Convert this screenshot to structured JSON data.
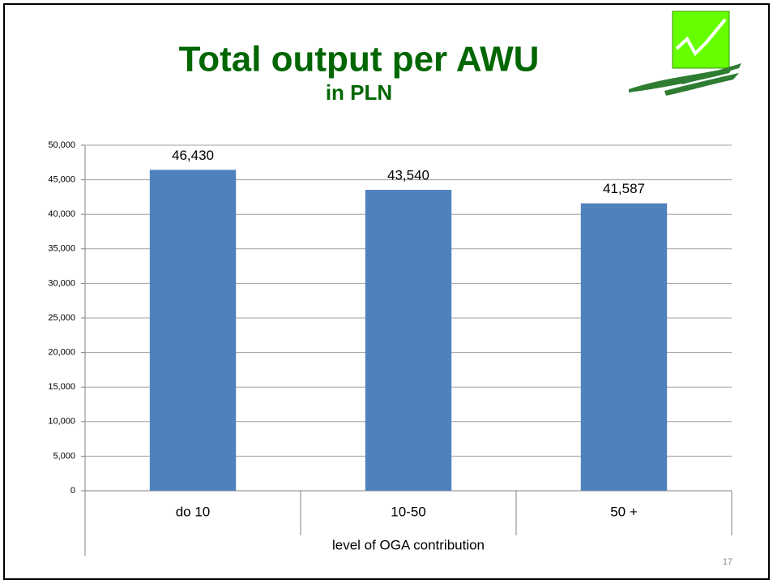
{
  "chart_data": {
    "type": "bar",
    "title": "Total output per AWU",
    "subtitle": "in PLN",
    "categories": [
      "do 10",
      "10-50",
      "50 +"
    ],
    "values": [
      46430,
      43540,
      41587
    ],
    "value_labels": [
      "46,430",
      "43,540",
      "41,587"
    ],
    "color": "#4f81bd",
    "xlabel": "level of OGA contribution",
    "ylim": [
      0,
      50000
    ],
    "yticks": [
      0,
      {
        "value": 5000,
        "label": "5,000"
      },
      {
        "value": 10000,
        "label": "10,000"
      },
      {
        "value": 15000,
        "label": "15,000"
      },
      {
        "value": 20000,
        "label": "20,000"
      },
      {
        "value": 25000,
        "label": "25,000"
      },
      {
        "value": 30000,
        "label": "30,000"
      },
      {
        "value": 35000,
        "label": "35,000"
      },
      {
        "value": 40000,
        "label": "40,000"
      },
      {
        "value": 45000,
        "label": "45,000"
      },
      {
        "value": 50000,
        "label": "50,000"
      }
    ],
    "grid": true,
    "page_number": "17"
  }
}
